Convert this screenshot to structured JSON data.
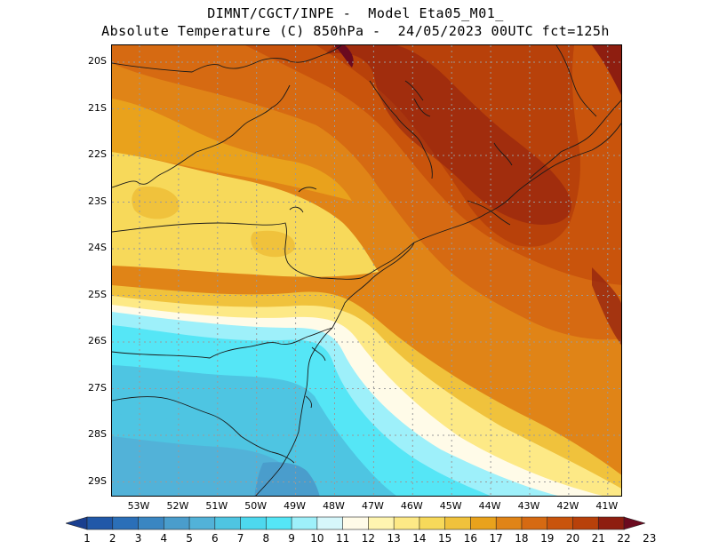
{
  "header": {
    "line1": "DIMNT/CGCT/INPE -  Model Eta05_M01_",
    "line2": "Absolute Temperature (C) 850hPa -  24/05/2023 00UTC fct=125h"
  },
  "map": {
    "lat_labels": [
      "20S",
      "21S",
      "22S",
      "23S",
      "24S",
      "25S",
      "26S",
      "27S",
      "28S",
      "29S"
    ],
    "lon_labels": [
      "53W",
      "52W",
      "51W",
      "50W",
      "49W",
      "48W",
      "47W",
      "46W",
      "45W",
      "44W",
      "43W",
      "42W",
      "41W"
    ],
    "palette": [
      "#1a3f8f",
      "#2158a8",
      "#2b6fb8",
      "#3a86c2",
      "#4a9dcc",
      "#52b2d8",
      "#4ec5e2",
      "#4dd8ee",
      "#55e6f6",
      "#9ef0fa",
      "#d6f7fb",
      "#fffbe8",
      "#fff5b0",
      "#fde986",
      "#f7d95a",
      "#f0c23c",
      "#e9a21c",
      "#e08417",
      "#d66a12",
      "#c9540c",
      "#b8410a",
      "#8e1e10",
      "#6b0a1f"
    ],
    "grid_color": "#9a9a9a"
  },
  "colorbar": {
    "labels": [
      "1",
      "2",
      "3",
      "4",
      "5",
      "6",
      "7",
      "8",
      "9",
      "10",
      "11",
      "12",
      "13",
      "14",
      "15",
      "16",
      "17",
      "18",
      "19",
      "20",
      "21",
      "22",
      "23"
    ]
  }
}
